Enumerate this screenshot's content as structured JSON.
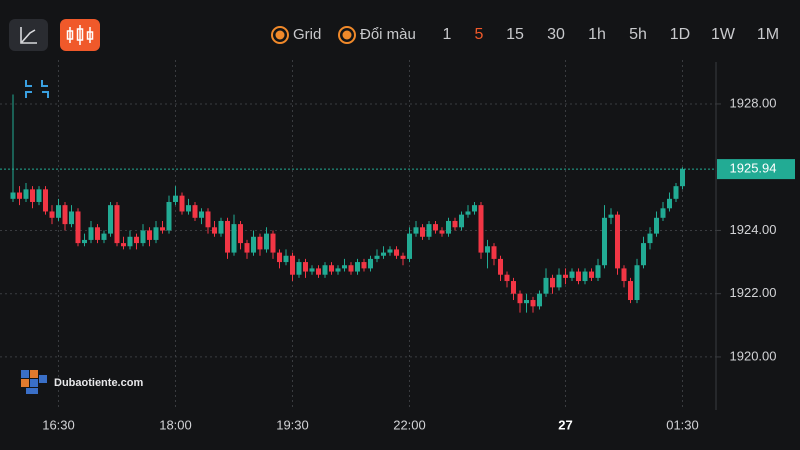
{
  "toolbar": {
    "toggles": [
      "Grid",
      "Đổi màu"
    ],
    "timeframes": [
      "1",
      "5",
      "15",
      "30",
      "1h",
      "5h",
      "1D",
      "1W",
      "1M"
    ],
    "active_timeframe_index": 1
  },
  "watermark": "Dubaotiente.com",
  "chart_data": {
    "type": "candlestick",
    "up_color": "#22ab94",
    "down_color": "#f23645",
    "grid": true,
    "ylim": [
      1918.48,
      1929.39
    ],
    "yticks": [
      {
        "value": 1920,
        "label": "1920.00"
      },
      {
        "value": 1922,
        "label": "1922.00"
      },
      {
        "value": 1924,
        "label": "1924.00"
      },
      {
        "value": 1928,
        "label": "1928.00"
      }
    ],
    "categories": [
      null,
      null,
      null,
      null,
      null,
      null,
      null,
      "16:30",
      null,
      null,
      null,
      null,
      null,
      null,
      null,
      null,
      null,
      null,
      null,
      null,
      null,
      null,
      null,
      null,
      null,
      "18:00",
      null,
      null,
      null,
      null,
      null,
      null,
      null,
      null,
      null,
      null,
      null,
      null,
      null,
      null,
      null,
      null,
      null,
      "19:30",
      null,
      null,
      null,
      null,
      null,
      null,
      null,
      null,
      null,
      null,
      null,
      null,
      null,
      null,
      null,
      null,
      null,
      "22:00",
      null,
      null,
      null,
      null,
      null,
      null,
      null,
      null,
      null,
      null,
      null,
      null,
      null,
      null,
      null,
      null,
      null,
      null,
      null,
      null,
      null,
      null,
      null,
      "27",
      null,
      null,
      null,
      null,
      null,
      null,
      null,
      null,
      null,
      null,
      null,
      null,
      null,
      null,
      null,
      null,
      null,
      "01:30"
    ],
    "open": [
      1925.0,
      1925.2,
      1925.0,
      1925.3,
      1924.9,
      1925.3,
      1924.6,
      1924.4,
      1924.8,
      1924.2,
      1924.6,
      1923.6,
      1923.7,
      1924.1,
      1923.7,
      1923.9,
      1924.8,
      1923.6,
      1923.5,
      1923.8,
      1923.6,
      1924.0,
      1923.7,
      1924.1,
      1924.0,
      1924.9,
      1925.1,
      1924.6,
      1924.8,
      1924.4,
      1924.6,
      1924.1,
      1923.9,
      1924.3,
      1923.3,
      1924.2,
      1923.6,
      1923.3,
      1923.8,
      1923.4,
      1923.9,
      1923.3,
      1923.0,
      1923.2,
      1922.6,
      1923.0,
      1922.7,
      1922.8,
      1922.6,
      1922.9,
      1922.7,
      1922.8,
      1922.9,
      1922.7,
      1923.0,
      1922.8,
      1923.1,
      1923.2,
      1923.3,
      1923.4,
      1923.2,
      1923.1,
      1923.9,
      1924.1,
      1923.8,
      1924.2,
      1924.0,
      1923.9,
      1924.3,
      1924.1,
      1924.5,
      1924.6,
      1924.8,
      1923.3,
      1923.5,
      1923.1,
      1922.6,
      1922.4,
      1922.0,
      1921.7,
      1921.8,
      1921.6,
      1922.0,
      1922.5,
      1922.2,
      1922.6,
      1922.5,
      1922.7,
      1922.4,
      1922.7,
      1922.5,
      1922.9,
      1924.4,
      1924.5,
      1922.8,
      1922.4,
      1921.8,
      1922.9,
      1923.6,
      1923.9,
      1924.4,
      1924.7,
      1925.0,
      1925.4
    ],
    "high": [
      1928.3,
      1925.4,
      1925.5,
      1925.4,
      1925.4,
      1925.4,
      1924.8,
      1925.0,
      1924.9,
      1924.8,
      1924.7,
      1923.9,
      1924.3,
      1924.2,
      1924.0,
      1924.9,
      1924.9,
      1923.8,
      1924.0,
      1923.9,
      1924.2,
      1924.1,
      1924.3,
      1924.3,
      1925.1,
      1925.4,
      1925.2,
      1925.0,
      1924.9,
      1924.7,
      1924.7,
      1924.3,
      1924.4,
      1924.4,
      1924.5,
      1924.3,
      1923.7,
      1924.0,
      1923.9,
      1924.1,
      1924.0,
      1923.4,
      1923.4,
      1923.3,
      1923.1,
      1923.1,
      1922.9,
      1922.9,
      1923.0,
      1923.0,
      1922.9,
      1923.1,
      1923.0,
      1923.1,
      1923.1,
      1923.2,
      1923.4,
      1923.5,
      1923.5,
      1923.5,
      1923.3,
      1924.1,
      1924.3,
      1924.2,
      1924.3,
      1924.3,
      1924.1,
      1924.4,
      1924.4,
      1924.6,
      1924.8,
      1924.9,
      1924.9,
      1923.7,
      1923.6,
      1923.2,
      1922.7,
      1922.5,
      1922.1,
      1922.0,
      1921.9,
      1922.1,
      1922.8,
      1922.6,
      1922.8,
      1922.8,
      1922.8,
      1922.8,
      1922.8,
      1922.8,
      1923.1,
      1924.8,
      1924.7,
      1924.6,
      1922.9,
      1922.5,
      1923.1,
      1923.8,
      1924.1,
      1924.6,
      1924.9,
      1925.2,
      1925.5,
      1926.0
    ],
    "low": [
      1924.9,
      1924.8,
      1924.9,
      1924.7,
      1924.8,
      1924.5,
      1924.2,
      1924.3,
      1924.0,
      1924.1,
      1923.5,
      1923.5,
      1923.6,
      1923.6,
      1923.6,
      1923.8,
      1923.5,
      1923.4,
      1923.4,
      1923.4,
      1923.5,
      1923.5,
      1923.6,
      1923.9,
      1923.9,
      1924.8,
      1924.5,
      1924.5,
      1924.3,
      1924.2,
      1923.9,
      1923.8,
      1923.8,
      1923.1,
      1923.2,
      1923.4,
      1923.1,
      1923.2,
      1923.2,
      1923.3,
      1923.1,
      1922.8,
      1922.9,
      1922.4,
      1922.5,
      1922.5,
      1922.6,
      1922.5,
      1922.5,
      1922.6,
      1922.6,
      1922.7,
      1922.6,
      1922.6,
      1922.7,
      1922.7,
      1923.0,
      1923.1,
      1923.2,
      1923.1,
      1922.9,
      1923.0,
      1923.8,
      1923.7,
      1923.7,
      1923.9,
      1923.8,
      1923.8,
      1924.0,
      1924.0,
      1924.4,
      1924.5,
      1923.1,
      1922.8,
      1922.9,
      1922.4,
      1922.2,
      1921.8,
      1921.4,
      1921.4,
      1921.4,
      1921.5,
      1921.9,
      1922.0,
      1922.1,
      1922.3,
      1922.4,
      1922.3,
      1922.3,
      1922.4,
      1922.4,
      1922.8,
      1924.2,
      1922.6,
      1922.2,
      1921.7,
      1921.7,
      1922.8,
      1923.4,
      1923.8,
      1924.3,
      1924.6,
      1924.9,
      1925.3
    ],
    "close": [
      1925.2,
      1925.0,
      1925.3,
      1924.9,
      1925.3,
      1924.6,
      1924.4,
      1924.8,
      1924.2,
      1924.6,
      1923.6,
      1923.7,
      1924.1,
      1923.7,
      1923.9,
      1924.8,
      1923.6,
      1923.5,
      1923.8,
      1923.6,
      1924.0,
      1923.7,
      1924.1,
      1924.0,
      1924.9,
      1925.1,
      1924.6,
      1924.8,
      1924.4,
      1924.6,
      1924.1,
      1923.9,
      1924.3,
      1923.3,
      1924.2,
      1923.6,
      1923.3,
      1923.8,
      1923.4,
      1923.9,
      1923.3,
      1923.0,
      1923.2,
      1922.6,
      1923.0,
      1922.7,
      1922.8,
      1922.6,
      1922.9,
      1922.7,
      1922.8,
      1922.9,
      1922.7,
      1923.0,
      1922.8,
      1923.1,
      1923.2,
      1923.3,
      1923.4,
      1923.2,
      1923.1,
      1923.9,
      1924.1,
      1923.8,
      1924.2,
      1924.0,
      1923.9,
      1924.3,
      1924.1,
      1924.5,
      1924.6,
      1924.8,
      1923.3,
      1923.5,
      1923.1,
      1922.6,
      1922.4,
      1922.0,
      1921.7,
      1921.8,
      1921.6,
      1922.0,
      1922.5,
      1922.2,
      1922.6,
      1922.5,
      1922.7,
      1922.4,
      1922.7,
      1922.5,
      1922.9,
      1924.4,
      1924.5,
      1922.8,
      1922.4,
      1921.8,
      1922.9,
      1923.6,
      1923.9,
      1924.4,
      1924.7,
      1925.0,
      1925.4,
      1925.94
    ]
  }
}
